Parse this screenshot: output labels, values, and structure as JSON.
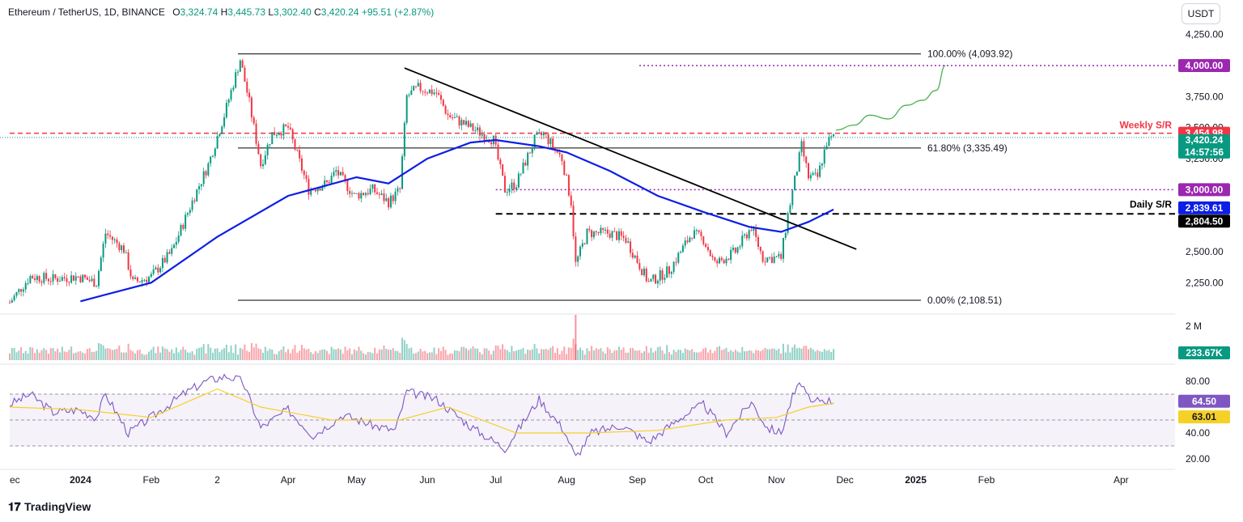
{
  "header": {
    "symbol": "Ethereum / TetherUS, 1D, BINANCE",
    "open_label": "O",
    "open": "3,324.74",
    "high_label": "H",
    "high": "3,445.73",
    "low_label": "L",
    "low": "3,302.40",
    "close_label": "C",
    "close": "3,420.24",
    "change": "+95.51 (+2.87%)"
  },
  "currency_button": "USDT",
  "branding": "TradingView",
  "colors": {
    "up": "#089981",
    "down": "#f23645",
    "ma": "#0d1ee6",
    "rsi": "#7e57c2",
    "rsi_ma": "#f5d027",
    "fib": "#000000",
    "purple_level": "#9c27b0",
    "projection": "#4caf50"
  },
  "chart_data": [
    {
      "type": "candlestick",
      "ylim": [
        2050,
        4300
      ],
      "price_ticks": [
        "4,250.00",
        "3,750.00",
        "3,500.00",
        "3,250.00",
        "2,500.00",
        "2,250.00"
      ],
      "price_tick_values": [
        4250,
        3750,
        3500,
        3250,
        2500,
        2250
      ],
      "time_labels": [
        "ec",
        "2024",
        "Feb",
        "2",
        "Apr",
        "May",
        "Jun",
        "Jul",
        "Aug",
        "Sep",
        "Oct",
        "Nov",
        "Dec",
        "2025",
        "Feb",
        "Apr"
      ],
      "time_label_dates": [
        "2023-12-01",
        "2024-01-01",
        "2024-02-01",
        "2024-03-01",
        "2024-04-01",
        "2024-05-01",
        "2024-06-01",
        "2024-07-01",
        "2024-08-01",
        "2024-09-01",
        "2024-10-01",
        "2024-11-01",
        "2024-12-01",
        "2025-01-01",
        "2025-02-01",
        "2025-04-01"
      ],
      "start_date": "2023-12-01",
      "price_path": [
        [
          "2023-12-01",
          2090
        ],
        [
          "2023-12-10",
          2300
        ],
        [
          "2023-12-20",
          2280
        ],
        [
          "2023-12-31",
          2300
        ],
        [
          "2024-01-08",
          2250
        ],
        [
          "2024-01-12",
          2650
        ],
        [
          "2024-01-20",
          2520
        ],
        [
          "2024-01-24",
          2250
        ],
        [
          "2024-02-01",
          2300
        ],
        [
          "2024-02-10",
          2500
        ],
        [
          "2024-02-20",
          2950
        ],
        [
          "2024-02-26",
          3200
        ],
        [
          "2024-03-04",
          3600
        ],
        [
          "2024-03-11",
          4050
        ],
        [
          "2024-03-15",
          3700
        ],
        [
          "2024-03-20",
          3200
        ],
        [
          "2024-03-25",
          3450
        ],
        [
          "2024-04-01",
          3500
        ],
        [
          "2024-04-10",
          3000
        ],
        [
          "2024-04-18",
          3050
        ],
        [
          "2024-04-22",
          3150
        ],
        [
          "2024-04-30",
          2950
        ],
        [
          "2024-05-08",
          3000
        ],
        [
          "2024-05-15",
          2900
        ],
        [
          "2024-05-20",
          3000
        ],
        [
          "2024-05-23",
          3750
        ],
        [
          "2024-05-28",
          3820
        ],
        [
          "2024-06-05",
          3780
        ],
        [
          "2024-06-10",
          3600
        ],
        [
          "2024-06-20",
          3500
        ],
        [
          "2024-06-30",
          3400
        ],
        [
          "2024-07-05",
          3000
        ],
        [
          "2024-07-10",
          3050
        ],
        [
          "2024-07-18",
          3400
        ],
        [
          "2024-07-22",
          3450
        ],
        [
          "2024-07-30",
          3250
        ],
        [
          "2024-08-03",
          2900
        ],
        [
          "2024-08-05",
          2400
        ],
        [
          "2024-08-10",
          2650
        ],
        [
          "2024-08-20",
          2650
        ],
        [
          "2024-08-27",
          2600
        ],
        [
          "2024-09-06",
          2250
        ],
        [
          "2024-09-15",
          2350
        ],
        [
          "2024-09-25",
          2650
        ],
        [
          "2024-09-30",
          2600
        ],
        [
          "2024-10-05",
          2400
        ],
        [
          "2024-10-14",
          2500
        ],
        [
          "2024-10-21",
          2700
        ],
        [
          "2024-10-26",
          2450
        ],
        [
          "2024-11-03",
          2450
        ],
        [
          "2024-11-06",
          2800
        ],
        [
          "2024-11-12",
          3350
        ],
        [
          "2024-11-15",
          3100
        ],
        [
          "2024-11-19",
          3100
        ],
        [
          "2024-11-23",
          3380
        ],
        [
          "2024-11-26",
          3420
        ]
      ],
      "ma_path": [
        [
          "2024-01-01",
          2100
        ],
        [
          "2024-02-01",
          2250
        ],
        [
          "2024-03-01",
          2620
        ],
        [
          "2024-04-01",
          2950
        ],
        [
          "2024-05-01",
          3100
        ],
        [
          "2024-05-15",
          3050
        ],
        [
          "2024-06-01",
          3250
        ],
        [
          "2024-06-20",
          3380
        ],
        [
          "2024-07-01",
          3400
        ],
        [
          "2024-07-20",
          3350
        ],
        [
          "2024-08-01",
          3300
        ],
        [
          "2024-08-20",
          3150
        ],
        [
          "2024-09-10",
          2950
        ],
        [
          "2024-09-30",
          2820
        ],
        [
          "2024-10-20",
          2700
        ],
        [
          "2024-11-03",
          2660
        ],
        [
          "2024-11-15",
          2740
        ],
        [
          "2024-11-26",
          2839.61
        ]
      ],
      "levels": [
        {
          "name": "100.00% (4,093.92)",
          "value": 4093.92
        },
        {
          "name": "61.80% (3,335.49)",
          "value": 3335.49
        },
        {
          "name": "0.00% (2,108.51)",
          "value": 2108.51
        }
      ],
      "weekly_sr": {
        "label": "Weekly S/R",
        "value": 3454.98,
        "price_label": "3,454.98"
      },
      "daily_sr": {
        "label": "Daily S/R",
        "value": 2804.5,
        "price_label": "2,804.50"
      },
      "purple_levels": [
        {
          "value": 4000,
          "price_label": "4,000.00"
        },
        {
          "value": 3000,
          "price_label": "3,000.00"
        }
      ],
      "last_price": {
        "value": 3420.24,
        "price_label": "3,420.24",
        "countdown": "14:57:56"
      },
      "ma_value": {
        "value": 2839.61,
        "price_label": "2,839.61"
      },
      "trendline": [
        [
          "2024-05-22",
          3980
        ],
        [
          "2024-12-06",
          2520
        ]
      ],
      "projection": [
        [
          "2024-11-27",
          3480
        ],
        [
          "2024-12-05",
          3520
        ],
        [
          "2024-12-12",
          3600
        ],
        [
          "2024-12-20",
          3570
        ],
        [
          "2024-12-28",
          3680
        ],
        [
          "2025-01-04",
          3720
        ],
        [
          "2025-01-10",
          3800
        ],
        [
          "2025-01-14",
          4000
        ]
      ]
    },
    {
      "type": "bar",
      "name": "volume",
      "ticks": [
        "2 M"
      ],
      "last_value_label": "233.67K",
      "spike_date": "2024-08-05"
    },
    {
      "type": "line",
      "name": "RSI",
      "ylim": [
        15,
        90
      ],
      "ticks": [
        "80.00",
        "40.00",
        "20.00"
      ],
      "tick_values": [
        80,
        40,
        20
      ],
      "upper_band": 70,
      "lower_band": 30,
      "mid": 50,
      "rsi_path": [
        [
          "2023-12-01",
          62
        ],
        [
          "2023-12-10",
          70
        ],
        [
          "2023-12-20",
          56
        ],
        [
          "2023-12-31",
          58
        ],
        [
          "2024-01-08",
          52
        ],
        [
          "2024-01-12",
          70
        ],
        [
          "2024-01-22",
          40
        ],
        [
          "2024-02-01",
          52
        ],
        [
          "2024-02-15",
          70
        ],
        [
          "2024-02-25",
          80
        ],
        [
          "2024-03-05",
          84
        ],
        [
          "2024-03-12",
          80
        ],
        [
          "2024-03-20",
          44
        ],
        [
          "2024-04-01",
          58
        ],
        [
          "2024-04-12",
          38
        ],
        [
          "2024-04-25",
          54
        ],
        [
          "2024-05-10",
          45
        ],
        [
          "2024-05-18",
          42
        ],
        [
          "2024-05-23",
          72
        ],
        [
          "2024-06-05",
          66
        ],
        [
          "2024-06-20",
          45
        ],
        [
          "2024-07-05",
          28
        ],
        [
          "2024-07-20",
          66
        ],
        [
          "2024-07-31",
          42
        ],
        [
          "2024-08-05",
          21
        ],
        [
          "2024-08-12",
          40
        ],
        [
          "2024-08-25",
          46
        ],
        [
          "2024-09-06",
          33
        ],
        [
          "2024-09-20",
          52
        ],
        [
          "2024-09-30",
          62
        ],
        [
          "2024-10-10",
          40
        ],
        [
          "2024-10-21",
          64
        ],
        [
          "2024-10-28",
          44
        ],
        [
          "2024-11-03",
          40
        ],
        [
          "2024-11-08",
          68
        ],
        [
          "2024-11-12",
          79
        ],
        [
          "2024-11-16",
          62
        ],
        [
          "2024-11-20",
          66
        ],
        [
          "2024-11-26",
          64.5
        ]
      ],
      "rsi_ma_path": [
        [
          "2023-12-01",
          60
        ],
        [
          "2024-01-01",
          58
        ],
        [
          "2024-02-01",
          52
        ],
        [
          "2024-03-01",
          74
        ],
        [
          "2024-03-20",
          60
        ],
        [
          "2024-04-20",
          50
        ],
        [
          "2024-05-20",
          50
        ],
        [
          "2024-06-10",
          60
        ],
        [
          "2024-07-10",
          40
        ],
        [
          "2024-08-10",
          40
        ],
        [
          "2024-09-10",
          42
        ],
        [
          "2024-10-10",
          50
        ],
        [
          "2024-11-01",
          52
        ],
        [
          "2024-11-15",
          60
        ],
        [
          "2024-11-26",
          63.01
        ]
      ],
      "rsi_value": {
        "value": 64.5,
        "label": "64.50"
      },
      "rsi_ma_value": {
        "value": 63.01,
        "label": "63.01"
      }
    }
  ]
}
